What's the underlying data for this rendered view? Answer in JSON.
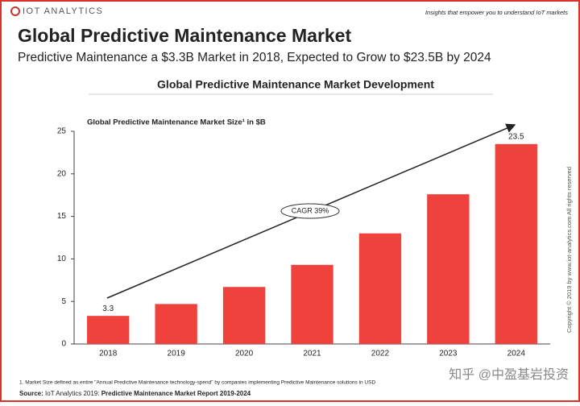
{
  "header": {
    "brand": "IOT ANALYTICS",
    "tagline": "Insights that empower you to understand IoT markets",
    "title": "Global Predictive Maintenance Market",
    "subtitle": "Predictive Maintenance a $3.3B Market in 2018, Expected to Grow to $23.5B by 2024"
  },
  "chart_data": {
    "type": "bar",
    "title": "Global Predictive Maintenance Market Development",
    "y_label": "Global Predictive Maintenance Market Size¹ in $B",
    "categories": [
      "2018",
      "2019",
      "2020",
      "2021",
      "2022",
      "2023",
      "2024"
    ],
    "values": [
      3.3,
      4.7,
      6.7,
      9.3,
      13.0,
      17.6,
      23.5
    ],
    "value_labels": [
      "3.3",
      null,
      null,
      null,
      null,
      null,
      "23.5"
    ],
    "color": "#f0423c",
    "ylim": [
      0,
      25
    ],
    "yticks": [
      0,
      5,
      10,
      15,
      20,
      25
    ],
    "grid": false,
    "annotation": "CAGR 39%"
  },
  "footer": {
    "copyright": "Copyright © 2019 by www.iot-analytics.com All rights reserved",
    "footnote": "1. Market Size defined as entire \"Annual Predictive Maintenance technology-spend\" by companies implementing Predictive Maintenance solutions in USD",
    "source_label": "Source:",
    "source_text": "IoT Analytics 2019:",
    "source_report": "Predictive Maintenance Market Report 2019-2024",
    "watermark": "知乎 @中盈基岩投资"
  }
}
